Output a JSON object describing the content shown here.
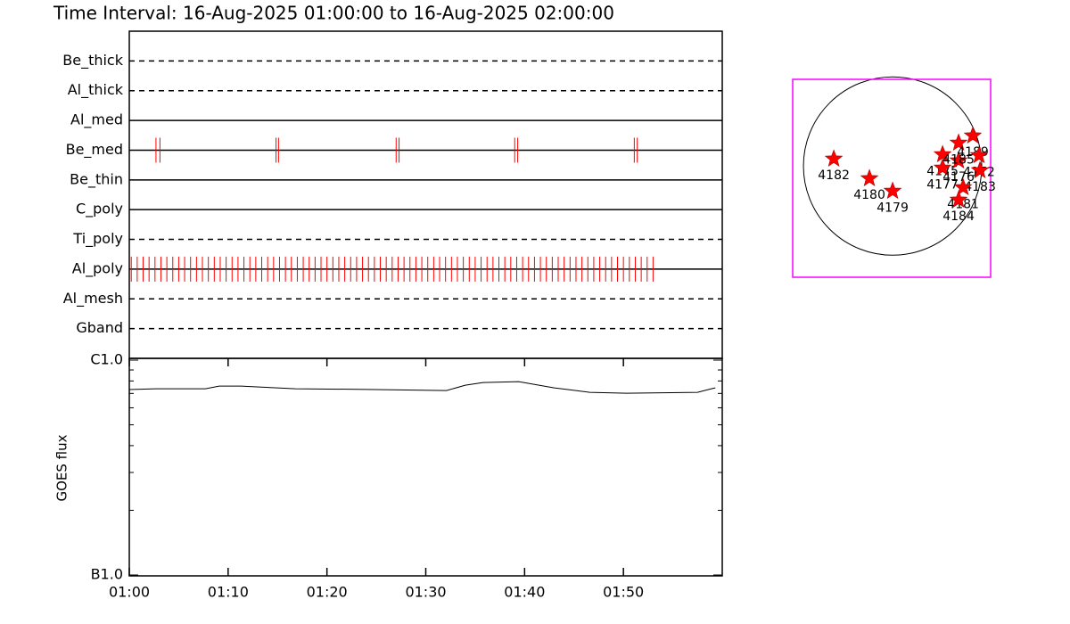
{
  "chart_data": [
    {
      "type": "timeline",
      "title": "Time Interval: 16-Aug-2025 01:00:00 to 16-Aug-2025 02:00:00",
      "xlim": [
        0,
        60
      ],
      "color": "#ff0000",
      "rows": [
        {
          "name": "Be_thick",
          "style": "dashed",
          "exposures": []
        },
        {
          "name": "Al_thick",
          "style": "dashed",
          "exposures": []
        },
        {
          "name": "Al_med",
          "style": "solid",
          "exposures": []
        },
        {
          "name": "Be_med",
          "style": "solid",
          "exposures": [
            2.7,
            3.1,
            14.85,
            15.1,
            27.0,
            27.3,
            39.0,
            39.3,
            51.1,
            51.4
          ]
        },
        {
          "name": "Be_thin",
          "style": "solid",
          "exposures": []
        },
        {
          "name": "C_poly",
          "style": "solid",
          "exposures": []
        },
        {
          "name": "Ti_poly",
          "style": "dashed",
          "exposures": []
        },
        {
          "name": "Al_poly",
          "style": "solid",
          "exposures": [
            0.2,
            0.8,
            1.4,
            2.0,
            2.6,
            3.2,
            3.8,
            4.4,
            5.0,
            5.6,
            6.2,
            6.8,
            7.4,
            8.0,
            8.6,
            9.2,
            9.8,
            10.4,
            11.0,
            11.6,
            12.2,
            12.8,
            13.4,
            14.0,
            14.6,
            15.2,
            15.8,
            16.4,
            17.0,
            17.6,
            18.2,
            18.8,
            19.4,
            20.0,
            20.6,
            21.2,
            21.8,
            22.4,
            23.0,
            23.6,
            24.2,
            24.8,
            25.4,
            26.0,
            26.6,
            27.2,
            27.8,
            28.4,
            29.0,
            29.6,
            30.2,
            30.8,
            31.4,
            32.0,
            32.6,
            33.2,
            33.8,
            34.4,
            35.0,
            35.6,
            36.2,
            36.8,
            37.4,
            38.0,
            38.6,
            39.2,
            39.8,
            40.4,
            41.0,
            41.6,
            42.2,
            42.8,
            43.4,
            44.0,
            44.6,
            45.2,
            45.8,
            46.4,
            47.0,
            47.6,
            48.2,
            48.8,
            49.4,
            50.0,
            50.6,
            51.2,
            51.8,
            52.4,
            53.0
          ]
        },
        {
          "name": "Al_mesh",
          "style": "dashed",
          "exposures": []
        },
        {
          "name": "Gband",
          "style": "dashed",
          "exposures": []
        }
      ]
    },
    {
      "type": "line",
      "ylabel": "GOES flux",
      "color": "#000000",
      "log_y": true,
      "x": [
        0,
        2.7,
        7.7,
        9.1,
        11.3,
        16.8,
        24.9,
        32.1,
        34.0,
        35.8,
        39.4,
        43.0,
        46.6,
        50.3,
        57.5,
        58.9,
        59.3
      ],
      "values": [
        7.3e-07,
        7.36e-07,
        7.36e-07,
        7.57e-07,
        7.57e-07,
        7.36e-07,
        7.3e-07,
        7.22e-07,
        7.64e-07,
        7.87e-07,
        7.94e-07,
        7.43e-07,
        7.08e-07,
        7.01e-07,
        7.08e-07,
        7.36e-07,
        7.43e-07
      ],
      "xlim": [
        0,
        60
      ],
      "xticks": [
        {
          "value": 0,
          "label": "01:00"
        },
        {
          "value": 10,
          "label": "01:10"
        },
        {
          "value": 20,
          "label": "01:20"
        },
        {
          "value": 30,
          "label": "01:30"
        },
        {
          "value": 40,
          "label": "01:40"
        },
        {
          "value": 50,
          "label": "01:50"
        }
      ],
      "ylim": [
        1e-07,
        1e-06
      ],
      "yticks": [
        {
          "value": 1e-06,
          "label": "C1.0"
        },
        {
          "value": 1e-07,
          "label": "B1.0"
        }
      ],
      "yminorticks": [
        2e-07,
        3e-07,
        4e-07,
        5e-07,
        6e-07,
        7e-07,
        8e-07,
        9e-07
      ]
    },
    {
      "type": "scatter",
      "color": "#ff0000",
      "frame_color": "#ff00ff",
      "xlim": [
        -1060,
        1040
      ],
      "ylim": [
        -1180,
        920
      ],
      "solar_radius": 946,
      "labels": [
        "4182",
        "4180",
        "4179",
        "4175",
        "4177",
        "4176",
        "4185",
        "4189",
        "4172",
        "4183",
        "4181",
        "4184"
      ],
      "x": [
        -624,
        -246,
        0,
        530,
        530,
        700,
        700,
        851,
        917,
        927,
        748,
        700
      ],
      "y": [
        76,
        -132,
        -265,
        123,
        -19,
        57,
        246,
        322,
        113,
        -47,
        -227,
        -359
      ]
    }
  ]
}
